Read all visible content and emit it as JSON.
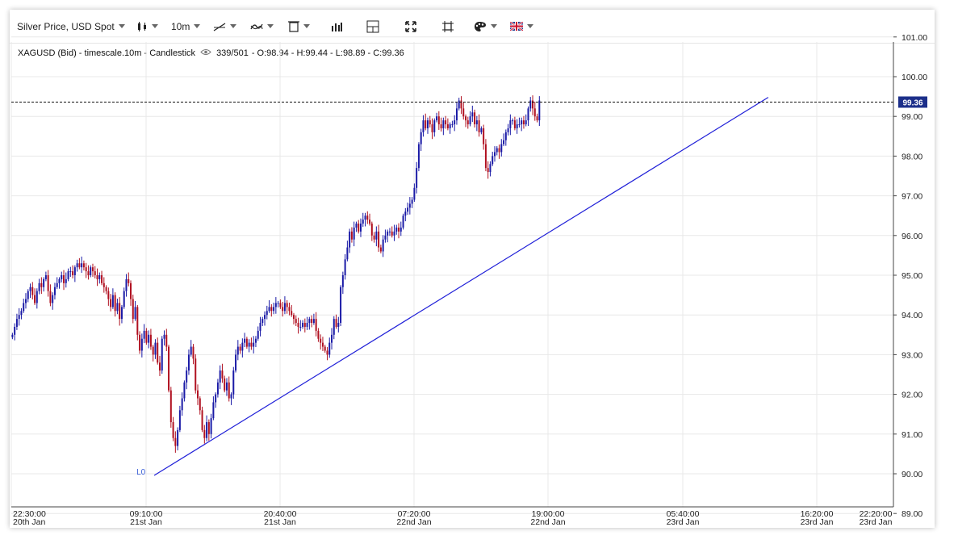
{
  "toolbar": {
    "instrument_label": "Silver Price, USD Spot",
    "interval_label": "10m",
    "icons": [
      "candlestick-type-icon",
      "line-draw-icon",
      "indicator-icon",
      "delete-drawing-icon",
      "volume-bars-icon",
      "crosshair-layout-icon",
      "fullscreen-icon",
      "snapshot-icon",
      "theme-palette-icon",
      "language-flag-uk-icon"
    ]
  },
  "legend": {
    "series_label": "XAGUSD (Bid) - timescale.10m - Candlestick",
    "count": "339/501",
    "ohlc": "- O:98.94 - H:99.44 - L:98.89 - C:99.36"
  },
  "colors": {
    "up": "#1a1aa6",
    "down": "#b01020",
    "trendline": "#2020d8",
    "price_tag_bg": "#1c2f8a",
    "grid": "#e8e8e8"
  },
  "chart_data": {
    "type": "candlestick",
    "y_ticks": [
      "101.00",
      "100.00",
      "99.00",
      "98.00",
      "97.00",
      "96.00",
      "95.00",
      "94.00",
      "93.00",
      "92.00",
      "91.00",
      "90.00",
      "89.00"
    ],
    "ylim": [
      89.0,
      101.0
    ],
    "x_ticks": [
      {
        "time": "22:30:00",
        "date": "20th Jan"
      },
      {
        "time": "09:10:00",
        "date": "21st Jan"
      },
      {
        "time": "20:40:00",
        "date": "21st Jan"
      },
      {
        "time": "07:20:00",
        "date": "22nd Jan"
      },
      {
        "time": "19:00:00",
        "date": "22nd Jan"
      },
      {
        "time": "05:40:00",
        "date": "23rd Jan"
      },
      {
        "time": "16:20:00",
        "date": "23rd Jan"
      },
      {
        "time": "22:20:00",
        "date": "23rd Jan"
      }
    ],
    "last_price": "99.36",
    "last_price_value": 99.36,
    "trendline_label": "L0",
    "trendline": {
      "start": {
        "bar": 64,
        "price": 89.96
      },
      "end": {
        "bar": 339,
        "price": 99.48
      }
    },
    "closes": [
      93.5,
      93.7,
      93.9,
      94.0,
      94.1,
      94.3,
      94.4,
      94.6,
      94.7,
      94.5,
      94.3,
      94.6,
      94.8,
      94.7,
      94.9,
      95.0,
      94.6,
      94.3,
      94.5,
      94.7,
      94.8,
      94.9,
      95.0,
      94.8,
      94.9,
      95.1,
      95.1,
      95.0,
      95.2,
      95.3,
      95.2,
      95.3,
      95.2,
      95.1,
      95.0,
      95.2,
      95.1,
      95.0,
      94.9,
      95.0,
      94.8,
      94.7,
      94.6,
      94.4,
      94.2,
      94.5,
      94.1,
      94.3,
      93.9,
      94.2,
      94.6,
      94.9,
      94.8,
      94.4,
      93.9,
      94.2,
      93.5,
      93.1,
      93.4,
      93.6,
      93.3,
      93.5,
      93.2,
      93.0,
      93.3,
      92.8,
      92.6,
      93.4,
      93.5,
      93.2,
      92.1,
      91.3,
      90.9,
      90.7,
      91.1,
      91.6,
      91.9,
      92.3,
      92.6,
      93.0,
      93.2,
      92.9,
      92.1,
      91.9,
      91.6,
      91.1,
      90.9,
      91.3,
      91.0,
      91.4,
      91.8,
      92.0,
      92.3,
      92.6,
      92.4,
      92.1,
      92.3,
      91.9,
      92.0,
      92.6,
      93.0,
      93.2,
      93.1,
      93.3,
      93.4,
      93.2,
      93.3,
      93.2,
      93.3,
      93.4,
      93.6,
      93.8,
      93.9,
      94.0,
      94.1,
      94.2,
      94.1,
      94.2,
      94.3,
      94.3,
      94.2,
      94.1,
      94.3,
      94.2,
      94.1,
      94.0,
      93.9,
      93.8,
      93.7,
      93.7,
      93.8,
      93.7,
      93.8,
      93.9,
      93.8,
      93.9,
      93.6,
      93.4,
      93.3,
      93.2,
      93.1,
      93.0,
      93.3,
      93.5,
      93.9,
      93.7,
      93.8,
      94.7,
      95.0,
      95.4,
      95.7,
      96.1,
      95.9,
      96.2,
      96.3,
      96.1,
      96.3,
      96.4,
      96.5,
      96.4,
      96.3,
      96.0,
      95.9,
      96.1,
      95.7,
      95.6,
      95.9,
      96.0,
      96.1,
      96.1,
      96.0,
      96.1,
      96.2,
      96.1,
      96.2,
      96.5,
      96.6,
      96.7,
      96.8,
      96.9,
      97.2,
      97.7,
      98.3,
      98.6,
      98.9,
      98.7,
      98.9,
      98.8,
      98.6,
      98.9,
      99.0,
      98.8,
      98.7,
      98.9,
      98.8,
      98.7,
      98.8,
      98.8,
      98.9,
      99.2,
      99.4,
      99.2,
      99.0,
      98.9,
      98.8,
      99.0,
      99.1,
      98.8,
      98.9,
      98.6,
      98.7,
      98.3,
      97.7,
      97.6,
      97.8,
      98.0,
      98.1,
      98.2,
      98.1,
      98.3,
      98.4,
      98.6,
      98.7,
      98.9,
      98.9,
      98.7,
      98.8,
      98.8,
      98.9,
      98.8,
      98.9,
      99.2,
      99.4,
      99.2,
      99.0,
      98.9,
      99.4
    ]
  }
}
